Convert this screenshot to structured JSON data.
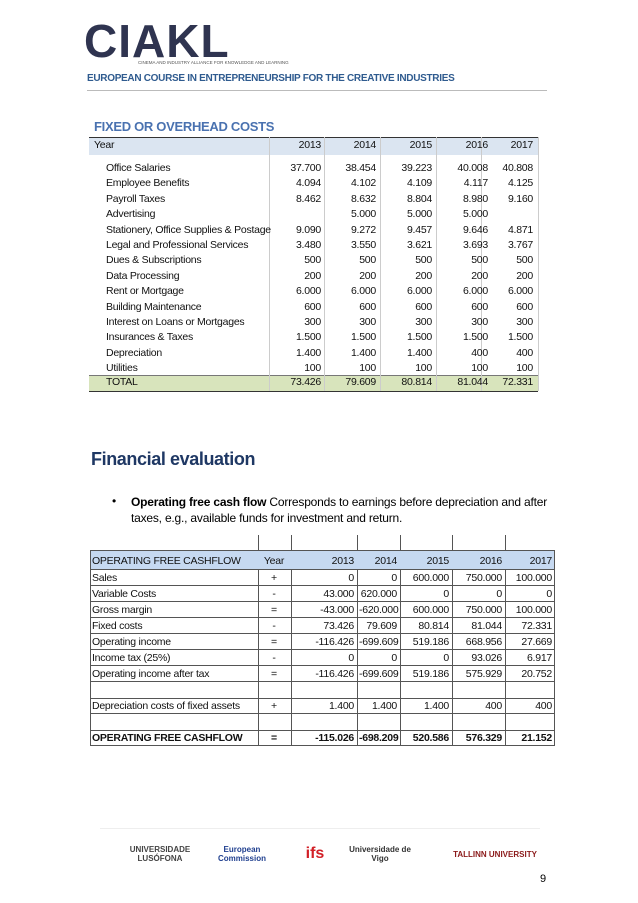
{
  "header": {
    "logo": "CIAKL",
    "tagline": "CINEMA AND INDUSTRY ALLIANCE FOR KNOWLEDGE AND LEARNING",
    "course": "EUROPEAN COURSE IN ENTREPRENEURSHIP FOR THE CREATIVE INDUSTRIES"
  },
  "fixed_costs": {
    "title": "FIXED OR OVERHEAD COSTS",
    "columns": [
      "Year",
      "2013",
      "2014",
      "2015",
      "2016",
      "2017"
    ],
    "rows": [
      [
        "Office Salaries",
        "37.700",
        "38.454",
        "39.223",
        "40.008",
        "40.808"
      ],
      [
        "Employee Benefits",
        "4.094",
        "4.102",
        "4.109",
        "4.117",
        "4.125"
      ],
      [
        "Payroll Taxes",
        "8.462",
        "8.632",
        "8.804",
        "8.980",
        "9.160"
      ],
      [
        "Advertising",
        null,
        "5.000",
        "5.000",
        "5.000",
        null
      ],
      [
        "Stationery, Office Supplies & Postage",
        "9.090",
        "9.272",
        "9.457",
        "9.646",
        "4.871"
      ],
      [
        "Legal and Professional Services",
        "3.480",
        "3.550",
        "3.621",
        "3.693",
        "3.767"
      ],
      [
        "Dues & Subscriptions",
        "500",
        "500",
        "500",
        "500",
        "500"
      ],
      [
        "Data Processing",
        "200",
        "200",
        "200",
        "200",
        "200"
      ],
      [
        "Rent or Mortgage",
        "6.000",
        "6.000",
        "6.000",
        "6.000",
        "6.000"
      ],
      [
        "Building Maintenance",
        "600",
        "600",
        "600",
        "600",
        "600"
      ],
      [
        "Interest on Loans or Mortgages",
        "300",
        "300",
        "300",
        "300",
        "300"
      ],
      [
        "Insurances & Taxes",
        "1.500",
        "1.500",
        "1.500",
        "1.500",
        "1.500"
      ],
      [
        "Depreciation",
        "1.400",
        "1.400",
        "1.400",
        "400",
        "400"
      ],
      [
        "Utilities",
        "100",
        "100",
        "100",
        "100",
        "100"
      ]
    ],
    "total": [
      "TOTAL",
      "73.426",
      "79.609",
      "80.814",
      "81.044",
      "72.331"
    ]
  },
  "evaluation": {
    "heading": "Financial evaluation",
    "bullet_term": "Operating free cash flow",
    "bullet_text": "Corresponds to earnings before depreciation and after taxes, e.g., available funds for investment and return."
  },
  "cashflow": {
    "columns": [
      "OPERATING FREE CASHFLOW",
      "Year",
      "2013",
      "2014",
      "2015",
      "2016",
      "2017"
    ],
    "rows": [
      [
        "Sales",
        "+",
        "0",
        "0",
        "600.000",
        "750.000",
        "100.000"
      ],
      [
        "Variable Costs",
        "-",
        "43.000",
        "620.000",
        "0",
        "0",
        "0"
      ],
      [
        "Gross margin",
        "=",
        "-43.000",
        "-620.000",
        "600.000",
        "750.000",
        "100.000"
      ],
      [
        "Fixed costs",
        "-",
        "73.426",
        "79.609",
        "80.814",
        "81.044",
        "72.331"
      ],
      [
        "Operating income",
        "=",
        "-116.426",
        "-699.609",
        "519.186",
        "668.956",
        "27.669"
      ],
      [
        "Income tax (25%)",
        "-",
        "0",
        "0",
        "0",
        "93.026",
        "6.917"
      ],
      [
        "Operating income after tax",
        "=",
        "-116.426",
        "-699.609",
        "519.186",
        "575.929",
        "20.752"
      ],
      [
        "Depreciation costs of fixed assets",
        "+",
        "1.400",
        "1.400",
        "1.400",
        "400",
        "400"
      ],
      [
        "OPERATING FREE CASHFLOW",
        "=",
        "-115.026",
        "-698.209",
        "520.586",
        "576.329",
        "21.152"
      ]
    ]
  },
  "footer": {
    "logos": [
      "UNIVERSIDADE LUSÓFONA",
      "European Commission",
      "ifs",
      "Universidade de Vigo",
      "TALLINN UNIVERSITY"
    ],
    "page": "9"
  }
}
